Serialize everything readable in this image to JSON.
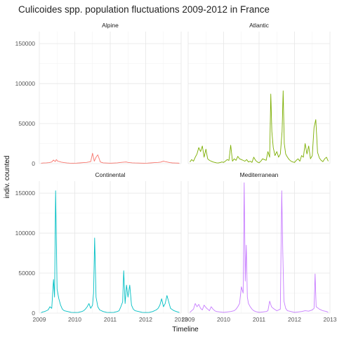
{
  "chart_data": {
    "type": "line",
    "title": "Culicoides spp. population fluctuations 2009-2012 in France",
    "xlabel": "Timeline",
    "ylabel": "indiv. counted",
    "xlim": [
      2009,
      2013
    ],
    "ylim": [
      0,
      165000
    ],
    "x_ticks": [
      "2009",
      "2010",
      "2011",
      "2012",
      "2013"
    ],
    "y_ticks": [
      "0",
      "50000",
      "100000",
      "150000"
    ],
    "grid": true,
    "legend": "none",
    "facet_layout": "2x2",
    "panels": [
      {
        "name": "Alpine",
        "color": "#F8766D",
        "series": {
          "x": [
            2009.05,
            2009.12,
            2009.2,
            2009.28,
            2009.35,
            2009.4,
            2009.45,
            2009.48,
            2009.52,
            2009.57,
            2009.62,
            2009.7,
            2009.78,
            2009.85,
            2009.95,
            2010.05,
            2010.15,
            2010.25,
            2010.33,
            2010.4,
            2010.45,
            2010.5,
            2010.55,
            2010.6,
            2010.65,
            2010.72,
            2010.8,
            2010.9,
            2011.0,
            2011.1,
            2011.2,
            2011.3,
            2011.38,
            2011.45,
            2011.5,
            2011.55,
            2011.62,
            2011.7,
            2011.78,
            2011.85,
            2011.95,
            2012.05,
            2012.15,
            2012.25,
            2012.35,
            2012.42,
            2012.5,
            2012.55,
            2012.6,
            2012.68,
            2012.75,
            2012.85,
            2012.95
          ],
          "y": [
            500,
            800,
            1000,
            1200,
            2000,
            4500,
            2500,
            5000,
            3000,
            2500,
            1800,
            1200,
            800,
            600,
            500,
            600,
            900,
            1200,
            1500,
            2000,
            2500,
            13000,
            3000,
            8000,
            11000,
            2000,
            1000,
            700,
            500,
            700,
            1000,
            1500,
            1800,
            2000,
            1500,
            1200,
            1000,
            800,
            700,
            600,
            500,
            600,
            900,
            1200,
            1500,
            1800,
            3000,
            2500,
            2000,
            1200,
            900,
            700,
            500
          ]
        }
      },
      {
        "name": "Atlantic",
        "color": "#7CAE00",
        "series": {
          "x": [
            2009.05,
            2009.1,
            2009.15,
            2009.2,
            2009.25,
            2009.3,
            2009.35,
            2009.4,
            2009.45,
            2009.5,
            2009.55,
            2009.6,
            2009.65,
            2009.7,
            2009.75,
            2009.8,
            2009.85,
            2009.9,
            2009.95,
            2010.0,
            2010.05,
            2010.1,
            2010.15,
            2010.2,
            2010.25,
            2010.3,
            2010.35,
            2010.4,
            2010.45,
            2010.5,
            2010.55,
            2010.6,
            2010.65,
            2010.7,
            2010.75,
            2010.8,
            2010.85,
            2010.9,
            2010.95,
            2011.0,
            2011.05,
            2011.1,
            2011.15,
            2011.2,
            2011.25,
            2011.3,
            2011.33,
            2011.36,
            2011.4,
            2011.45,
            2011.5,
            2011.55,
            2011.6,
            2011.65,
            2011.68,
            2011.71,
            2011.75,
            2011.8,
            2011.85,
            2011.9,
            2011.95,
            2012.0,
            2012.05,
            2012.1,
            2012.15,
            2012.2,
            2012.25,
            2012.3,
            2012.35,
            2012.4,
            2012.45,
            2012.5,
            2012.55,
            2012.6,
            2012.65,
            2012.7,
            2012.75,
            2012.8,
            2012.85,
            2012.9,
            2012.95
          ],
          "y": [
            2000,
            5000,
            3000,
            8000,
            12000,
            20000,
            15000,
            22000,
            8000,
            18000,
            6000,
            4000,
            3000,
            2000,
            1500,
            1000,
            800,
            1200,
            2000,
            1500,
            3000,
            5000,
            4000,
            23000,
            3000,
            6000,
            4000,
            9000,
            6000,
            5000,
            4000,
            3000,
            5000,
            2000,
            3000,
            1500,
            8000,
            4000,
            2000,
            1000,
            3000,
            6000,
            5000,
            4000,
            15000,
            8000,
            87000,
            40000,
            20000,
            10000,
            15000,
            8000,
            12000,
            40000,
            91000,
            25000,
            12000,
            8000,
            5000,
            3000,
            2000,
            1500,
            4000,
            6000,
            3000,
            10000,
            8000,
            25000,
            12000,
            22000,
            6000,
            10000,
            45000,
            55000,
            14000,
            7000,
            4000,
            2500,
            6000,
            8000,
            3000
          ]
        }
      },
      {
        "name": "Continental",
        "color": "#00BFC4",
        "series": {
          "x": [
            2009.05,
            2009.1,
            2009.15,
            2009.2,
            2009.25,
            2009.3,
            2009.35,
            2009.4,
            2009.43,
            2009.46,
            2009.5,
            2009.55,
            2009.6,
            2009.65,
            2009.7,
            2009.8,
            2009.9,
            2010.0,
            2010.1,
            2010.2,
            2010.25,
            2010.3,
            2010.35,
            2010.4,
            2010.45,
            2010.5,
            2010.53,
            2010.56,
            2010.6,
            2010.65,
            2010.7,
            2010.8,
            2010.9,
            2011.0,
            2011.1,
            2011.2,
            2011.25,
            2011.3,
            2011.35,
            2011.38,
            2011.42,
            2011.46,
            2011.5,
            2011.55,
            2011.6,
            2011.65,
            2011.7,
            2011.8,
            2011.9,
            2012.0,
            2012.1,
            2012.2,
            2012.3,
            2012.35,
            2012.4,
            2012.45,
            2012.5,
            2012.55,
            2012.6,
            2012.7,
            2012.8,
            2012.9,
            2012.95
          ],
          "y": [
            500,
            1500,
            2000,
            3000,
            4000,
            8000,
            6000,
            42000,
            20000,
            153000,
            30000,
            18000,
            10000,
            5000,
            3000,
            2000,
            1000,
            800,
            1000,
            2000,
            3000,
            5000,
            8000,
            12000,
            6000,
            10000,
            25000,
            94000,
            20000,
            8000,
            4000,
            2000,
            1000,
            800,
            1000,
            2000,
            3000,
            8000,
            14000,
            53000,
            12000,
            35000,
            20000,
            35000,
            10000,
            5000,
            3000,
            2000,
            1000,
            800,
            1000,
            2000,
            4000,
            6000,
            10000,
            18000,
            8000,
            12000,
            22000,
            6000,
            3000,
            1500,
            800
          ]
        }
      },
      {
        "name": "Mediterranean",
        "color": "#C77CFF",
        "series": {
          "x": [
            2009.05,
            2009.1,
            2009.15,
            2009.2,
            2009.25,
            2009.3,
            2009.35,
            2009.4,
            2009.45,
            2009.5,
            2009.55,
            2009.6,
            2009.65,
            2009.7,
            2009.75,
            2009.8,
            2009.9,
            2010.0,
            2010.1,
            2010.2,
            2010.3,
            2010.35,
            2010.4,
            2010.45,
            2010.5,
            2010.55,
            2010.58,
            2010.61,
            2010.64,
            2010.67,
            2010.7,
            2010.75,
            2010.8,
            2010.85,
            2010.9,
            2011.0,
            2011.1,
            2011.2,
            2011.25,
            2011.3,
            2011.35,
            2011.4,
            2011.5,
            2011.6,
            2011.64,
            2011.67,
            2011.7,
            2011.75,
            2011.8,
            2011.9,
            2012.0,
            2012.1,
            2012.2,
            2012.3,
            2012.4,
            2012.5,
            2012.55,
            2012.58,
            2012.61,
            2012.7,
            2012.8,
            2012.9,
            2012.95
          ],
          "y": [
            1000,
            3000,
            5000,
            12000,
            8000,
            11000,
            6000,
            4000,
            10000,
            7000,
            5000,
            3000,
            8000,
            5000,
            3000,
            2000,
            1500,
            1000,
            1500,
            2000,
            3000,
            5000,
            8000,
            12000,
            33000,
            25000,
            163000,
            40000,
            85000,
            20000,
            12000,
            8000,
            5000,
            3000,
            2000,
            1000,
            1500,
            2000,
            3000,
            15000,
            8000,
            6000,
            3000,
            5000,
            153000,
            76000,
            15000,
            6000,
            3000,
            2000,
            1000,
            1500,
            2000,
            3000,
            2500,
            4000,
            6000,
            49000,
            8000,
            5000,
            3000,
            2000,
            1000
          ]
        }
      }
    ]
  }
}
